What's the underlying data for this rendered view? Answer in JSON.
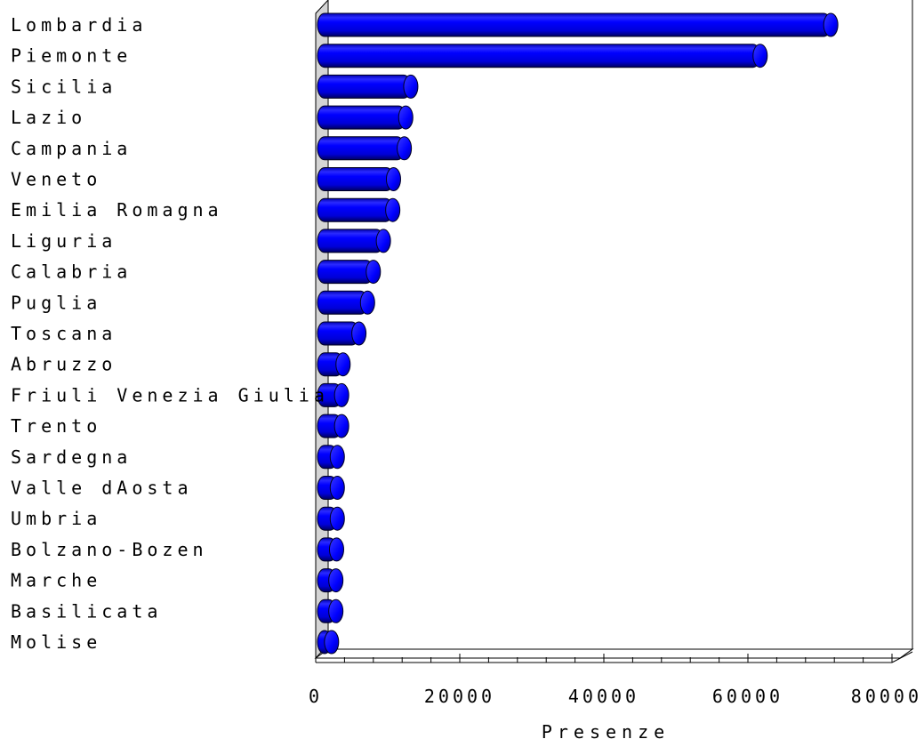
{
  "chart_data": {
    "type": "bar",
    "orientation": "horizontal",
    "xlabel": "Presenze",
    "ylabel": "",
    "xlim": [
      0,
      80000
    ],
    "major_ticks": [
      0,
      20000,
      40000,
      60000,
      80000
    ],
    "minor_tick_step": 4000,
    "grid": false,
    "bar_color": "#0000ff",
    "categories": [
      "Lombardia",
      "Piemonte",
      "Sicilia",
      "Lazio",
      "Campania",
      "Veneto",
      "Emilia Romagna",
      "Liguria",
      "Calabria",
      "Puglia",
      "Toscana",
      "Abruzzo",
      "Friuli Venezia Giulia",
      "Trento",
      "Sardegna",
      "Valle dAosta",
      "Umbria",
      "Bolzano-Bozen",
      "Marche",
      "Basilicata",
      "Molise"
    ],
    "values": [
      71500,
      61700,
      13200,
      12500,
      12300,
      10800,
      10700,
      9400,
      8000,
      7200,
      6000,
      3800,
      3600,
      3600,
      3000,
      3000,
      3000,
      2900,
      2800,
      2800,
      2200
    ]
  }
}
